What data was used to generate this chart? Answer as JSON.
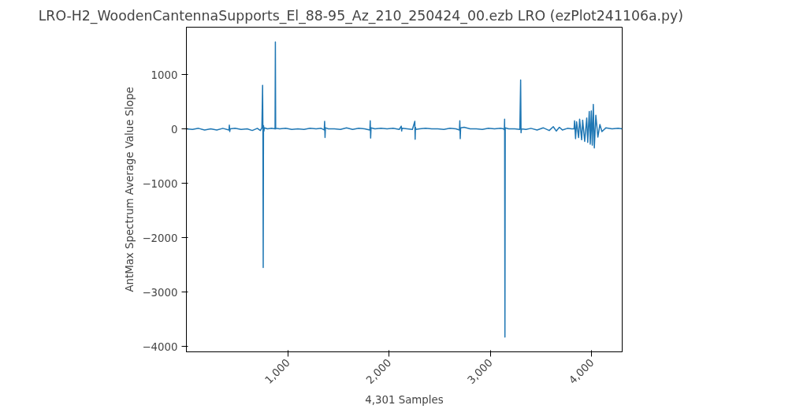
{
  "chart_data": {
    "type": "line",
    "title": "LRO-H2_WoodenCantennaSupports_El_88-95_Az_210_250424_00.ezb            LRO          (ezPlot241106a.py)",
    "xlabel": "4,301 Samples",
    "ylabel": "AntMax Spectrum Average Value Slope",
    "grid": false,
    "marker": "none",
    "line_style": "solid",
    "xlim": [
      0,
      4300
    ],
    "ylim": [
      -4100,
      1870
    ],
    "xticks": [
      {
        "value": 1000,
        "label": "1,000"
      },
      {
        "value": 2000,
        "label": "2,000"
      },
      {
        "value": 3000,
        "label": "3,000"
      },
      {
        "value": 4000,
        "label": "4,000"
      }
    ],
    "yticks": [
      {
        "value": -4000,
        "label": "−4000"
      },
      {
        "value": -3000,
        "label": "−3000"
      },
      {
        "value": -2000,
        "label": "−2000"
      },
      {
        "value": -1000,
        "label": "−1000"
      },
      {
        "value": 0,
        "label": "0"
      },
      {
        "value": 1000,
        "label": "1000"
      }
    ],
    "series": [
      {
        "color": "#1f77b4",
        "x": [
          0,
          60,
          120,
          180,
          240,
          300,
          360,
          420,
          424,
          428,
          432,
          480,
          540,
          600,
          650,
          700,
          730,
          745,
          752,
          755,
          758,
          761,
          765,
          770,
          800,
          840,
          875,
          878,
          881,
          884,
          920,
          980,
          1040,
          1100,
          1160,
          1220,
          1280,
          1330,
          1360,
          1364,
          1368,
          1372,
          1400,
          1460,
          1520,
          1580,
          1640,
          1700,
          1760,
          1810,
          1814,
          1818,
          1822,
          1860,
          1920,
          1980,
          2040,
          2100,
          2120,
          2124,
          2128,
          2180,
          2230,
          2254,
          2257,
          2260,
          2264,
          2300,
          2360,
          2420,
          2480,
          2540,
          2600,
          2660,
          2694,
          2698,
          2702,
          2706,
          2740,
          2800,
          2860,
          2920,
          2980,
          3040,
          3100,
          3130,
          3137,
          3140,
          3143,
          3146,
          3180,
          3240,
          3290,
          3298,
          3302,
          3306,
          3350,
          3400,
          3460,
          3520,
          3580,
          3620,
          3650,
          3680,
          3710,
          3760,
          3800,
          3825,
          3830,
          3840,
          3850,
          3870,
          3880,
          3900,
          3910,
          3930,
          3950,
          3960,
          3975,
          3985,
          3995,
          4005,
          4015,
          4025,
          4040,
          4060,
          4080,
          4100,
          4140,
          4200,
          4260,
          4300
        ],
        "values": [
          0,
          -10,
          10,
          -20,
          0,
          -20,
          10,
          -20,
          70,
          -50,
          0,
          10,
          -10,
          0,
          -30,
          10,
          -30,
          20,
          800,
          0,
          -2550,
          60,
          -40,
          20,
          0,
          10,
          0,
          1600,
          0,
          10,
          0,
          10,
          -10,
          0,
          -10,
          10,
          0,
          10,
          -20,
          140,
          -160,
          20,
          0,
          0,
          -10,
          20,
          -10,
          10,
          0,
          -20,
          150,
          -170,
          20,
          0,
          10,
          0,
          10,
          -10,
          50,
          -40,
          10,
          0,
          -10,
          140,
          -190,
          30,
          -10,
          0,
          10,
          0,
          0,
          -10,
          10,
          0,
          -20,
          150,
          -180,
          20,
          30,
          0,
          0,
          -10,
          10,
          0,
          10,
          0,
          -20,
          180,
          -3830,
          20,
          0,
          0,
          -10,
          900,
          -70,
          0,
          -10,
          10,
          -20,
          20,
          -30,
          40,
          -40,
          30,
          -20,
          10,
          0,
          0,
          150,
          -180,
          130,
          -160,
          180,
          -200,
          160,
          -230,
          200,
          -250,
          320,
          -280,
          330,
          -300,
          450,
          -350,
          250,
          -150,
          80,
          -50,
          20,
          0,
          10,
          0
        ]
      }
    ]
  }
}
